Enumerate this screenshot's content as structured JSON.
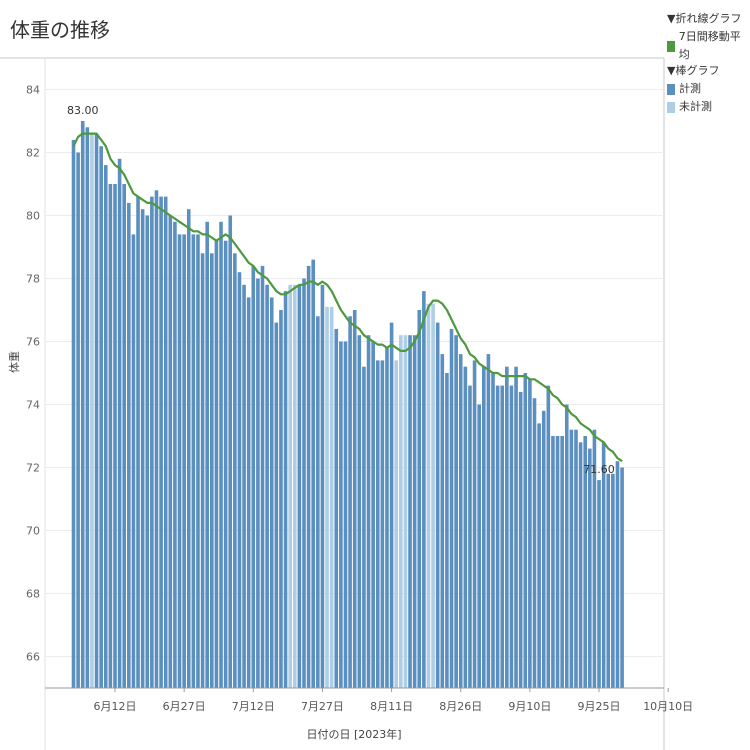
{
  "title": "体重の推移",
  "legend": {
    "line_header": "▼折れ線グラフ",
    "line_item": "7日間移動平均",
    "bar_header": "▼棒グラフ",
    "bar_items": [
      "計測",
      "未計測"
    ]
  },
  "colors": {
    "measured": "#5b8fc0",
    "unmeasured": "#aecde6",
    "line": "#4c9a3d"
  },
  "chart_data": {
    "type": "bar",
    "start_date": "2023-06-03",
    "values": [
      82.4,
      82.0,
      83.0,
      82.8,
      82.6,
      82.6,
      82.2,
      81.6,
      81.0,
      81.0,
      81.8,
      81.0,
      80.4,
      79.4,
      80.6,
      80.2,
      80.0,
      80.6,
      80.8,
      80.6,
      80.6,
      80.0,
      79.8,
      79.4,
      79.4,
      80.2,
      79.4,
      79.4,
      78.8,
      79.8,
      78.8,
      79.2,
      79.8,
      79.2,
      80.0,
      78.8,
      78.2,
      77.8,
      77.4,
      78.4,
      78.0,
      78.4,
      77.8,
      77.4,
      76.6,
      77.0,
      77.6,
      77.8,
      77.8,
      77.8,
      78.0,
      78.4,
      78.6,
      76.8,
      77.8,
      77.1,
      77.1,
      76.4,
      76.0,
      76.0,
      76.8,
      77.0,
      76.2,
      75.2,
      76.2,
      76.0,
      75.4,
      75.4,
      75.8,
      76.6,
      75.4,
      76.2,
      76.2,
      76.2,
      76.2,
      77.0,
      77.6,
      77.2,
      77.2,
      76.6,
      75.6,
      75.0,
      76.4,
      76.2,
      75.6,
      75.2,
      74.6,
      75.4,
      74.0,
      75.2,
      75.6,
      75.0,
      74.6,
      74.6,
      75.2,
      74.6,
      75.2,
      74.4,
      75.0,
      74.8,
      74.2,
      73.4,
      73.8,
      74.6,
      73.0,
      73.0,
      73.0,
      74.0,
      73.2,
      73.2,
      72.8,
      73.0,
      72.6,
      73.2,
      71.6,
      72.8,
      71.8,
      71.8,
      72.2,
      72.0
    ],
    "measured": [
      1,
      1,
      1,
      1,
      0,
      1,
      1,
      1,
      1,
      1,
      1,
      1,
      1,
      1,
      1,
      1,
      1,
      1,
      1,
      1,
      1,
      1,
      1,
      1,
      1,
      1,
      1,
      1,
      1,
      1,
      1,
      1,
      1,
      1,
      1,
      1,
      1,
      1,
      1,
      1,
      1,
      1,
      1,
      1,
      1,
      1,
      1,
      0,
      0,
      1,
      1,
      1,
      1,
      1,
      1,
      0,
      0,
      1,
      1,
      1,
      1,
      1,
      1,
      1,
      1,
      1,
      1,
      1,
      1,
      1,
      0,
      0,
      0,
      1,
      1,
      1,
      1,
      0,
      0,
      1,
      1,
      1,
      1,
      1,
      1,
      1,
      1,
      1,
      1,
      1,
      1,
      1,
      1,
      1,
      1,
      1,
      1,
      1,
      1,
      1,
      1,
      1,
      1,
      1,
      1,
      1,
      1,
      1,
      1,
      1,
      1,
      1,
      1,
      1,
      1,
      1,
      1,
      1,
      1,
      1
    ],
    "moving_avg": [
      82.2,
      82.5,
      82.6,
      82.6,
      82.6,
      82.6,
      82.4,
      82.2,
      81.8,
      81.6,
      81.5,
      81.3,
      81.0,
      80.7,
      80.6,
      80.5,
      80.4,
      80.4,
      80.3,
      80.2,
      80.1,
      80.0,
      79.9,
      79.8,
      79.7,
      79.6,
      79.5,
      79.5,
      79.4,
      79.4,
      79.3,
      79.2,
      79.3,
      79.4,
      79.3,
      79.1,
      78.9,
      78.7,
      78.5,
      78.4,
      78.2,
      78.1,
      78.0,
      77.8,
      77.6,
      77.5,
      77.5,
      77.6,
      77.7,
      77.8,
      77.8,
      77.9,
      77.9,
      77.8,
      77.9,
      77.8,
      77.6,
      77.3,
      77.0,
      76.8,
      76.6,
      76.5,
      76.4,
      76.2,
      76.1,
      76.0,
      75.9,
      75.9,
      75.8,
      75.9,
      75.8,
      75.7,
      75.7,
      75.8,
      76.0,
      76.3,
      76.7,
      77.1,
      77.3,
      77.3,
      77.2,
      77.0,
      76.7,
      76.4,
      76.1,
      75.9,
      75.6,
      75.5,
      75.3,
      75.2,
      75.1,
      75.0,
      75.0,
      74.9,
      74.9,
      74.9,
      74.9,
      74.9,
      74.9,
      74.8,
      74.8,
      74.7,
      74.6,
      74.5,
      74.3,
      74.2,
      74.0,
      73.9,
      73.7,
      73.6,
      73.4,
      73.3,
      73.2,
      73.0,
      72.9,
      72.8,
      72.6,
      72.5,
      72.3,
      72.2
    ],
    "xticks": [
      {
        "label": "6月12日",
        "index": 9
      },
      {
        "label": "6月27日",
        "index": 24
      },
      {
        "label": "7月12日",
        "index": 39
      },
      {
        "label": "7月27日",
        "index": 54
      },
      {
        "label": "8月11日",
        "index": 69
      },
      {
        "label": "8月26日",
        "index": 84
      },
      {
        "label": "9月10日",
        "index": 99
      },
      {
        "label": "9月25日",
        "index": 114
      },
      {
        "label": "10月10日",
        "index": 129
      }
    ],
    "yticks": [
      66,
      68,
      70,
      72,
      74,
      76,
      78,
      80,
      82,
      84
    ],
    "ylim": [
      65,
      85
    ],
    "ylabel": "体重",
    "xlabel": "日付の日 [2023年]",
    "annotations": [
      {
        "text": "83.00",
        "index": 2
      },
      {
        "text": "71.60",
        "index": 114
      }
    ]
  }
}
